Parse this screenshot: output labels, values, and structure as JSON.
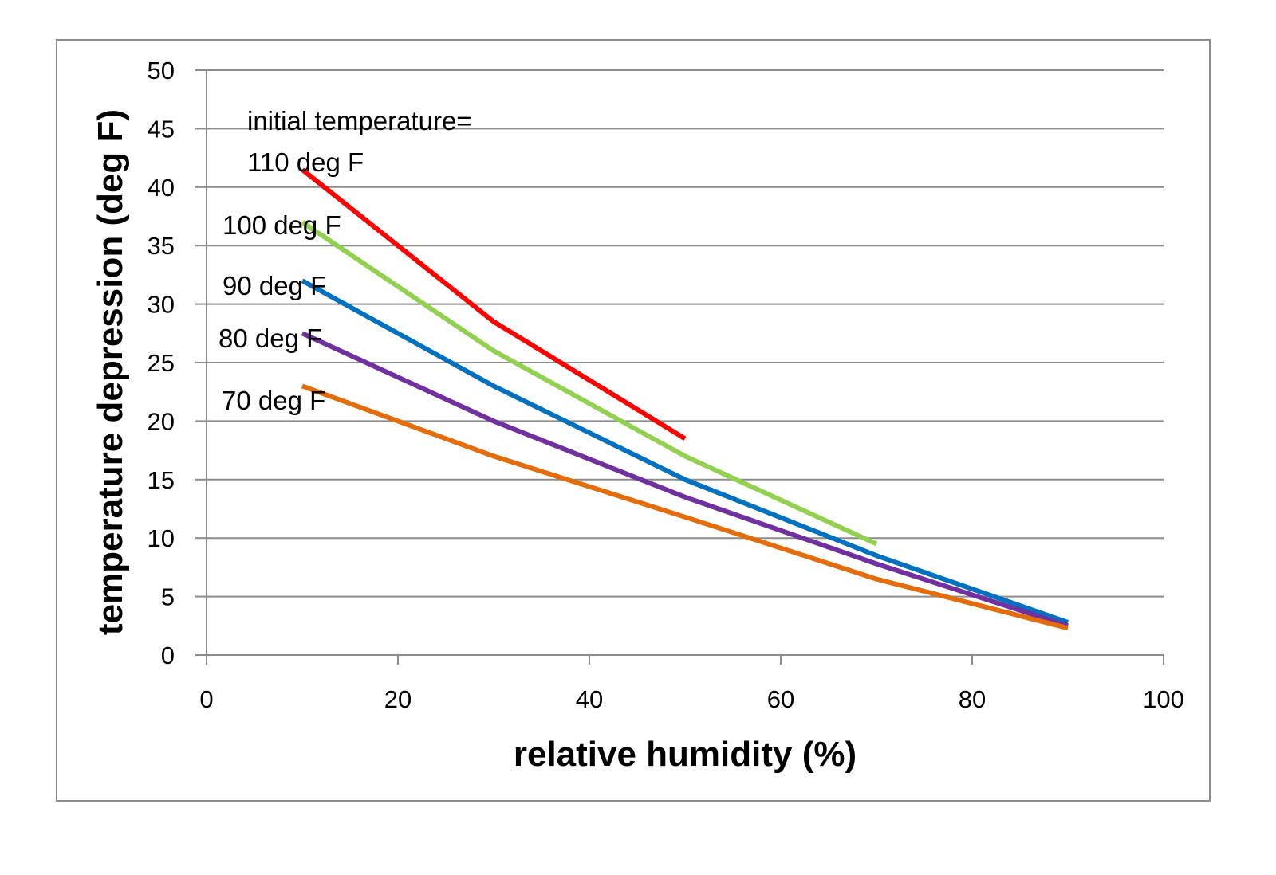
{
  "chart_data": {
    "type": "line",
    "xlabel": "relative humidity (%)",
    "ylabel": "temperature depression (deg F)",
    "xlim": [
      0,
      100
    ],
    "ylim": [
      0,
      50
    ],
    "x_ticks": [
      "0",
      "20",
      "40",
      "60",
      "80",
      "100"
    ],
    "y_ticks": [
      "0",
      "5",
      "10",
      "15",
      "20",
      "25",
      "30",
      "35",
      "40",
      "45",
      "50"
    ],
    "grid": "horizontal",
    "legend": "none",
    "annotations": {
      "header_line1": "initial temperature=",
      "header_line2": "110 deg F",
      "label_100": "100 deg F",
      "label_90": "90 deg F",
      "label_80": "80 deg F",
      "label_70": "70 deg F"
    },
    "series": [
      {
        "color": "#ff0000",
        "points": [
          [
            10,
            41.5
          ],
          [
            30,
            28.5
          ],
          [
            50,
            18.5
          ]
        ]
      },
      {
        "color": "#92d050",
        "points": [
          [
            10,
            37.0
          ],
          [
            30,
            26.0
          ],
          [
            50,
            17.0
          ],
          [
            70,
            9.5
          ]
        ]
      },
      {
        "color": "#0070c0",
        "points": [
          [
            10,
            32.0
          ],
          [
            30,
            23.0
          ],
          [
            50,
            15.0
          ],
          [
            70,
            8.5
          ],
          [
            90,
            2.8
          ]
        ]
      },
      {
        "color": "#7030a0",
        "points": [
          [
            10,
            27.5
          ],
          [
            30,
            20.0
          ],
          [
            50,
            13.5
          ],
          [
            70,
            7.8
          ],
          [
            90,
            2.5
          ]
        ]
      },
      {
        "color": "#e46c0a",
        "points": [
          [
            10,
            23.0
          ],
          [
            30,
            17.0
          ],
          [
            50,
            11.8
          ],
          [
            70,
            6.5
          ],
          [
            90,
            2.3
          ]
        ]
      }
    ]
  }
}
